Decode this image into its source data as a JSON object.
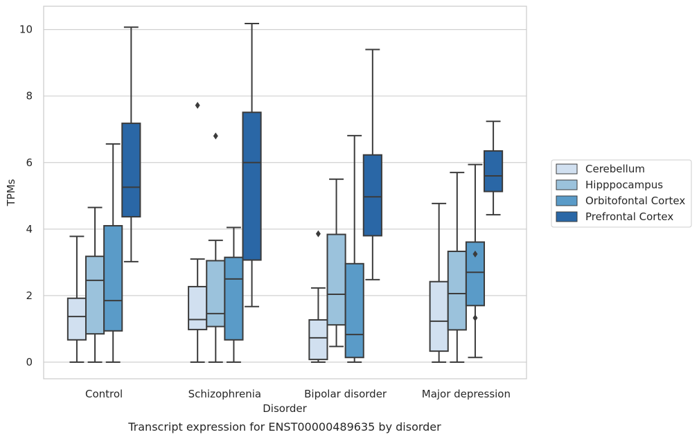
{
  "chart_data": {
    "type": "box",
    "title": "",
    "caption": "Transcript expression for ENST00000489635 by disorder",
    "xlabel": "Disorder",
    "ylabel": "TPMs",
    "ylim": [
      -0.5,
      10.7
    ],
    "yticks": [
      0,
      2,
      4,
      6,
      8,
      10
    ],
    "ytick_labels": [
      "0",
      "2",
      "4",
      "6",
      "8",
      "10"
    ],
    "grid": true,
    "legend_position": "right",
    "categories": [
      "Control",
      "Schizophrenia",
      "Bipolar disorder",
      "Major depression"
    ],
    "series": [
      {
        "name": "Cerebellum",
        "color": "#d1e0f0",
        "boxes": [
          {
            "whislo": 0.0,
            "q1": 0.67,
            "med": 1.37,
            "q3": 1.92,
            "whishi": 3.78,
            "fliers": []
          },
          {
            "whislo": 0.0,
            "q1": 0.98,
            "med": 1.28,
            "q3": 2.27,
            "whishi": 3.1,
            "fliers": [
              7.72
            ]
          },
          {
            "whislo": 0.0,
            "q1": 0.08,
            "med": 0.73,
            "q3": 1.27,
            "whishi": 2.23,
            "fliers": [
              3.86
            ]
          },
          {
            "whislo": 0.0,
            "q1": 0.33,
            "med": 1.23,
            "q3": 2.42,
            "whishi": 4.77,
            "fliers": []
          }
        ]
      },
      {
        "name": "Hipppocampus",
        "color": "#9bc2dc",
        "boxes": [
          {
            "whislo": 0.0,
            "q1": 0.85,
            "med": 2.46,
            "q3": 3.18,
            "whishi": 4.65,
            "fliers": []
          },
          {
            "whislo": 0.0,
            "q1": 1.07,
            "med": 1.46,
            "q3": 3.05,
            "whishi": 3.66,
            "fliers": [
              6.8
            ]
          },
          {
            "whislo": 0.47,
            "q1": 1.12,
            "med": 2.04,
            "q3": 3.84,
            "whishi": 5.5,
            "fliers": []
          },
          {
            "whislo": 0.0,
            "q1": 0.97,
            "med": 2.06,
            "q3": 3.33,
            "whishi": 5.7,
            "fliers": []
          }
        ]
      },
      {
        "name": "Orbitofontal Cortex",
        "color": "#5a9bc8",
        "boxes": [
          {
            "whislo": 0.0,
            "q1": 0.94,
            "med": 1.85,
            "q3": 4.1,
            "whishi": 6.56,
            "fliers": []
          },
          {
            "whislo": 0.0,
            "q1": 0.67,
            "med": 2.5,
            "q3": 3.15,
            "whishi": 4.05,
            "fliers": []
          },
          {
            "whislo": 0.0,
            "q1": 0.14,
            "med": 0.83,
            "q3": 2.96,
            "whishi": 6.81,
            "fliers": []
          },
          {
            "whislo": 0.14,
            "q1": 1.7,
            "med": 2.7,
            "q3": 3.61,
            "whishi": 5.94,
            "fliers": [
              3.25,
              1.33
            ]
          }
        ]
      },
      {
        "name": "Prefrontal Cortex",
        "color": "#2a67a6",
        "boxes": [
          {
            "whislo": 3.02,
            "q1": 4.37,
            "med": 5.26,
            "q3": 7.18,
            "whishi": 10.07,
            "fliers": []
          },
          {
            "whislo": 1.67,
            "q1": 3.07,
            "med": 6.0,
            "q3": 7.51,
            "whishi": 10.18,
            "fliers": []
          },
          {
            "whislo": 2.48,
            "q1": 3.8,
            "med": 4.97,
            "q3": 6.23,
            "whishi": 9.4,
            "fliers": []
          },
          {
            "whislo": 4.43,
            "q1": 5.13,
            "med": 5.6,
            "q3": 6.35,
            "whishi": 7.24,
            "fliers": []
          }
        ]
      }
    ]
  }
}
